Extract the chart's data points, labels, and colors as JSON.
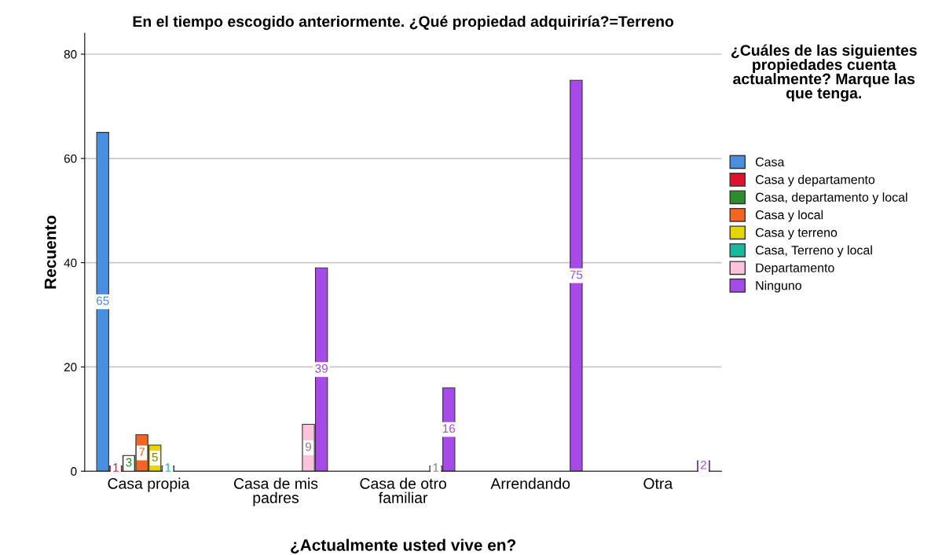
{
  "chart_data": {
    "type": "bar",
    "title": "En el tiempo escogido anteriormente. ¿Qué propiedad adquiriría?=Terreno",
    "xlabel": "¿Actualmente usted vive en?",
    "ylabel": "Recuento",
    "legend_title": "¿Cuáles de las siguientes propiedades cuenta actualmente? Marque las que tenga.",
    "categories": [
      "Casa propia",
      "Casa de mis padres",
      "Casa de otro familiar",
      "Arrendando",
      "Otra"
    ],
    "series": [
      {
        "name": "Casa",
        "color": "#4a8ee0",
        "values": [
          65,
          null,
          null,
          null,
          null
        ]
      },
      {
        "name": "Casa y departamento",
        "color": "#e0102f",
        "values": [
          1,
          null,
          null,
          null,
          null
        ]
      },
      {
        "name": "Casa, departamento y local",
        "color": "#2e8b2e",
        "values": [
          3,
          null,
          null,
          null,
          null
        ]
      },
      {
        "name": "Casa y local",
        "color": "#f26522",
        "values": [
          7,
          null,
          null,
          null,
          null
        ]
      },
      {
        "name": "Casa y terreno",
        "color": "#e6d600",
        "values": [
          5,
          null,
          null,
          null,
          null
        ]
      },
      {
        "name": "Casa, Terreno y local",
        "color": "#1ab89c",
        "values": [
          1,
          null,
          null,
          null,
          null
        ]
      },
      {
        "name": "Departamento",
        "color": "#ffc4dc",
        "values": [
          null,
          9,
          1,
          null,
          null
        ]
      },
      {
        "name": "Ninguno",
        "color": "#a64ae8",
        "values": [
          null,
          39,
          16,
          75,
          2
        ]
      }
    ],
    "ylim": [
      0,
      84
    ],
    "yticks": [
      0,
      20,
      40,
      60,
      80
    ],
    "grid": "y",
    "legend": "right",
    "data_labels": true
  }
}
